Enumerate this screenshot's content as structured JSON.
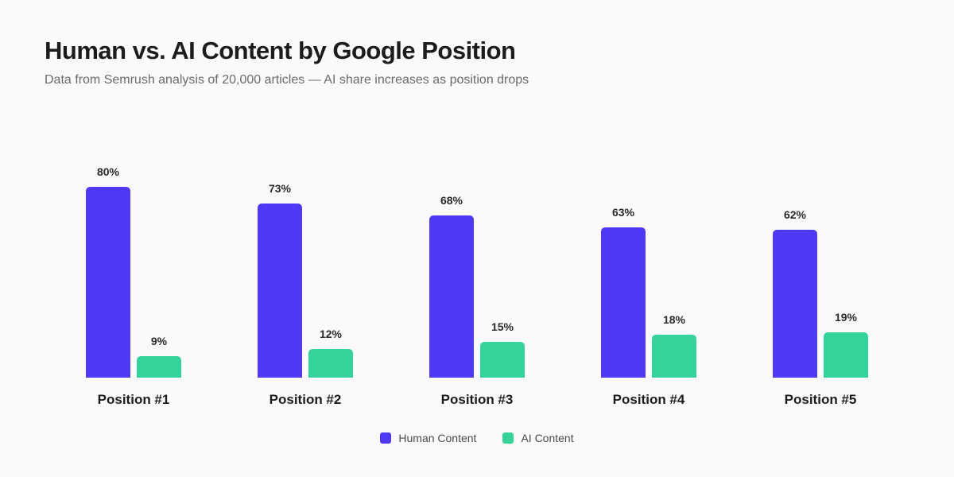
{
  "header": {
    "title": "Human vs. AI Content by Google Position",
    "subtitle": "Data from Semrush analysis of 20,000 articles — AI share increases as position drops"
  },
  "colors": {
    "human": "#4f39f6",
    "ai": "#34d399"
  },
  "chart_data": {
    "type": "bar",
    "title": "Human vs. AI Content by Google Position",
    "subtitle": "Data from Semrush analysis of 20,000 articles — AI share increases as position drops",
    "categories": [
      "Position #1",
      "Position #2",
      "Position #3",
      "Position #4",
      "Position #5"
    ],
    "series": [
      {
        "name": "Human Content",
        "values": [
          80,
          73,
          68,
          63,
          62
        ],
        "labels": [
          "80%",
          "73%",
          "68%",
          "63%",
          "62%"
        ]
      },
      {
        "name": "AI Content",
        "values": [
          9,
          12,
          15,
          18,
          19
        ],
        "labels": [
          "9%",
          "12%",
          "15%",
          "18%",
          "19%"
        ]
      }
    ],
    "xlabel": "",
    "ylabel": "",
    "grid": false,
    "legend_position": "bottom-center"
  }
}
